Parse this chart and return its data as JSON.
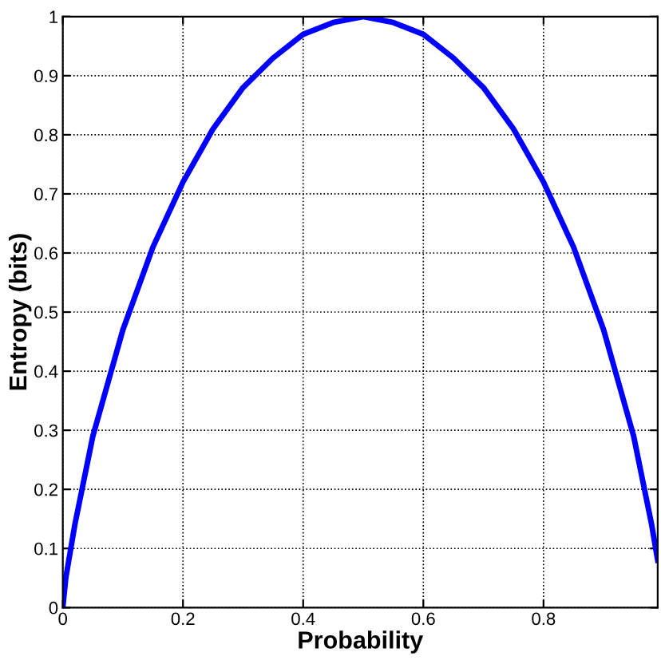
{
  "chart_data": {
    "type": "line",
    "xlabel": "Probability",
    "ylabel": "Entropy (bits)",
    "x": [
      0,
      0.005,
      0.01,
      0.02,
      0.03,
      0.05,
      0.075,
      0.1,
      0.15,
      0.2,
      0.25,
      0.3,
      0.35,
      0.4,
      0.45,
      0.5,
      0.55,
      0.6,
      0.65,
      0.7,
      0.75,
      0.8,
      0.85,
      0.9,
      0.925,
      0.95,
      0.97,
      0.98,
      0.99
    ],
    "series": [
      {
        "color": "#0000ff",
        "values": [
          0,
          0.05,
          0.08,
          0.14,
          0.19,
          0.29,
          0.38,
          0.47,
          0.61,
          0.72,
          0.81,
          0.88,
          0.93,
          0.97,
          0.99,
          1,
          0.99,
          0.97,
          0.93,
          0.88,
          0.81,
          0.72,
          0.61,
          0.47,
          0.38,
          0.29,
          0.19,
          0.14,
          0.08
        ]
      }
    ],
    "xlim": [
      0,
      0.99
    ],
    "ylim": [
      0,
      1
    ],
    "xticks": [
      0,
      0.2,
      0.4,
      0.6,
      0.8
    ],
    "yticks": [
      0,
      0.1,
      0.2,
      0.3,
      0.4,
      0.5,
      0.6,
      0.7,
      0.8,
      0.9,
      1
    ],
    "grid": true,
    "line_style": "solid",
    "marker": "none",
    "legend": false
  }
}
